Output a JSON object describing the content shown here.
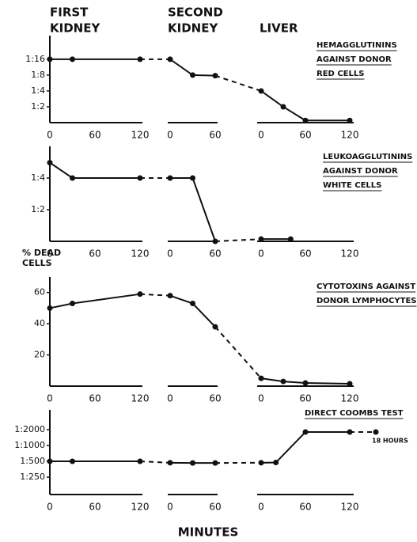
{
  "phases": [
    [
      "FIRST",
      "KIDNEY"
    ],
    [
      "SECOND",
      "KIDNEY"
    ],
    [
      "LIVER"
    ]
  ],
  "x_label": "MINUTES",
  "chart_data": [
    {
      "type": "line",
      "color": "#111",
      "connector": "dashed",
      "log_scale": true,
      "title_lines": [
        "HEMAGGLUTININS",
        "AGAINST DONOR",
        "RED CELLS"
      ],
      "ylim": [
        1,
        45
      ],
      "yticks": [
        {
          "value": 16,
          "label": "1:16"
        },
        {
          "value": 8,
          "label": "1:8"
        },
        {
          "value": 4,
          "label": "1:4"
        },
        {
          "value": 2,
          "label": "1:2"
        }
      ],
      "xaxes": [
        {
          "xlim": [
            0,
            120
          ],
          "xticks": [
            0,
            60,
            120
          ]
        },
        {
          "xlim": [
            0,
            60
          ],
          "xticks": [
            0,
            60
          ]
        },
        {
          "xlim": [
            0,
            120
          ],
          "xticks": [
            0,
            60,
            120
          ]
        }
      ],
      "series": [
        {
          "x": [
            0,
            30,
            120
          ],
          "values": [
            16,
            16,
            16
          ]
        },
        {
          "x": [
            0,
            30,
            60
          ],
          "values": [
            16,
            8,
            7.8
          ]
        },
        {
          "x": [
            0,
            30,
            60,
            120
          ],
          "values": [
            4,
            2,
            1.1,
            1.1
          ]
        }
      ]
    },
    {
      "type": "line",
      "color": "#111",
      "connector": "dashed",
      "log_scale": true,
      "title_lines": [
        "LEUKOAGGLUTININS",
        "AGAINST DONOR",
        "WHITE CELLS"
      ],
      "ylim": [
        1,
        8
      ],
      "yticks": [
        {
          "value": 4,
          "label": "1:4"
        },
        {
          "value": 2,
          "label": "1:2"
        }
      ],
      "xaxes": [
        {
          "xlim": [
            0,
            120
          ],
          "xticks": [
            0,
            60,
            120
          ]
        },
        {
          "xlim": [
            0,
            60
          ],
          "xticks": [
            0,
            60
          ]
        },
        {
          "xlim": [
            0,
            120
          ],
          "xticks": [
            0,
            60,
            120
          ]
        }
      ],
      "series": [
        {
          "x": [
            0,
            30,
            120
          ],
          "values": [
            5.6,
            4,
            4
          ]
        },
        {
          "x": [
            0,
            30,
            60
          ],
          "values": [
            4,
            4,
            1
          ]
        },
        {
          "x": [
            0,
            40
          ],
          "values": [
            1.05,
            1.05
          ]
        }
      ]
    },
    {
      "type": "line",
      "color": "#111",
      "connector": "dashed",
      "log_scale": false,
      "title_lines": [
        "CYTOTOXINS AGAINST",
        "DONOR LYMPHOCYTES"
      ],
      "y_label_lines": [
        "% DEAD",
        "CELLS"
      ],
      "ylim": [
        0,
        70
      ],
      "yticks": [
        60,
        40,
        20
      ],
      "xaxes": [
        {
          "xlim": [
            0,
            120
          ],
          "xticks": [
            0,
            60,
            120
          ]
        },
        {
          "xlim": [
            0,
            60
          ],
          "xticks": [
            0,
            60
          ]
        },
        {
          "xlim": [
            0,
            120
          ],
          "xticks": [
            0,
            60,
            120
          ]
        }
      ],
      "series": [
        {
          "x": [
            0,
            30,
            120
          ],
          "values": [
            50,
            53,
            59
          ]
        },
        {
          "x": [
            0,
            30,
            60
          ],
          "values": [
            58,
            53,
            38
          ]
        },
        {
          "x": [
            0,
            30,
            60,
            120
          ],
          "values": [
            5,
            3,
            2,
            1.5
          ]
        }
      ]
    },
    {
      "type": "line",
      "color": "#111",
      "connector": "dashed",
      "log_scale": true,
      "title_lines": [
        "DIRECT COOMBS TEST"
      ],
      "ylim": [
        117,
        4750
      ],
      "yticks": [
        {
          "value": 2000,
          "label": "1:2000"
        },
        {
          "value": 1000,
          "label": "1:1000"
        },
        {
          "value": 500,
          "label": "1:500"
        },
        {
          "value": 250,
          "label": "1:250"
        }
      ],
      "xaxes": [
        {
          "xlim": [
            0,
            120
          ],
          "xticks": [
            0,
            60,
            120
          ]
        },
        {
          "xlim": [
            0,
            60
          ],
          "xticks": [
            0,
            60
          ]
        },
        {
          "xlim": [
            0,
            120
          ],
          "xticks": [
            0,
            60,
            120
          ]
        }
      ],
      "series": [
        {
          "x": [
            0,
            30,
            120
          ],
          "values": [
            500,
            500,
            500
          ]
        },
        {
          "x": [
            0,
            30,
            60
          ],
          "values": [
            470,
            465,
            465
          ]
        },
        {
          "x": [
            0,
            20,
            60,
            120
          ],
          "values": [
            470,
            475,
            1800,
            1800
          ]
        }
      ],
      "annotation": {
        "label": "18 HOURS",
        "value": 1800
      }
    }
  ]
}
